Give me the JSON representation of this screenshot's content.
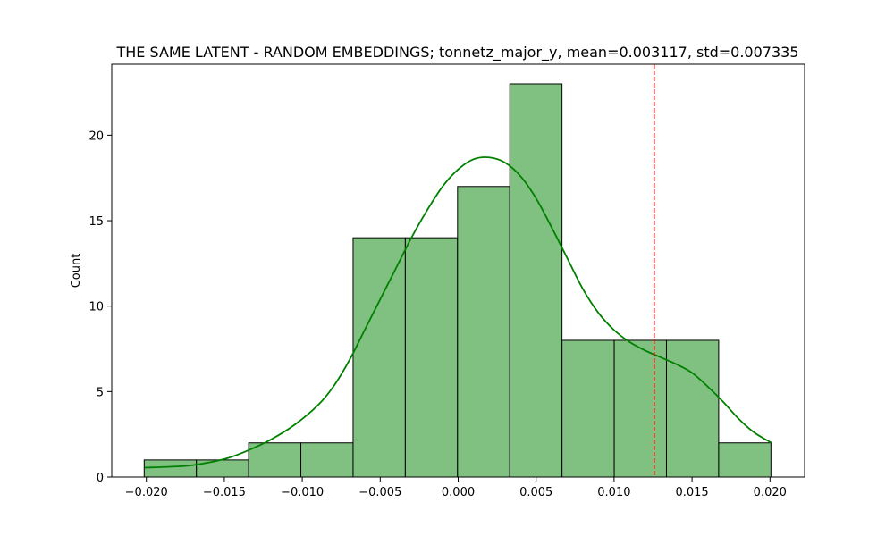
{
  "chart_data": {
    "type": "bar",
    "title": "THE SAME LATENT - RANDOM EMBEDDINGS; tonnetz_major_y, mean=0.003117, std=0.007335",
    "xlabel": "",
    "ylabel": "Count",
    "bin_edges": [
      -0.02014,
      -0.01679,
      -0.01344,
      -0.01009,
      -0.00674,
      -0.00339,
      -4e-05,
      0.00331,
      0.00666,
      0.01001,
      0.01336,
      0.01671,
      0.02006
    ],
    "values": [
      1,
      1,
      2,
      2,
      14,
      14,
      17,
      23,
      8,
      8,
      8,
      2
    ],
    "xlim": [
      -0.02222,
      0.02222
    ],
    "ylim": [
      0,
      24.15
    ],
    "x_ticks": [
      -0.02,
      -0.015,
      -0.01,
      -0.005,
      0.0,
      0.005,
      0.01,
      0.015,
      0.02
    ],
    "x_tick_labels": [
      "−0.020",
      "−0.015",
      "−0.010",
      "−0.005",
      "0.000",
      "0.005",
      "0.010",
      "0.015",
      "0.020"
    ],
    "y_ticks": [
      0,
      5,
      10,
      15,
      20
    ],
    "y_tick_labels": [
      "0",
      "5",
      "10",
      "15",
      "20"
    ],
    "kde": {
      "x": [
        -0.0201,
        -0.0185,
        -0.017,
        -0.015,
        -0.0135,
        -0.012,
        -0.0105,
        -0.009,
        -0.008,
        -0.007,
        -0.006,
        -0.005,
        -0.004,
        -0.003,
        -0.002,
        -0.001,
        0.0,
        0.001,
        0.002,
        0.003,
        0.004,
        0.005,
        0.006,
        0.007,
        0.008,
        0.009,
        0.01,
        0.011,
        0.012,
        0.013,
        0.014,
        0.015,
        0.016,
        0.017,
        0.018,
        0.019,
        0.0201
      ],
      "y": [
        0.55,
        0.6,
        0.7,
        1.05,
        1.55,
        2.2,
        3.05,
        4.2,
        5.3,
        6.8,
        8.6,
        10.4,
        12.2,
        14.0,
        15.6,
        17.0,
        18.0,
        18.6,
        18.7,
        18.4,
        17.6,
        16.3,
        14.6,
        12.8,
        11.0,
        9.6,
        8.6,
        7.9,
        7.4,
        7.0,
        6.6,
        6.1,
        5.3,
        4.4,
        3.4,
        2.6,
        2.0
      ]
    },
    "reference_line_x": 0.01258,
    "colors": {
      "bar_fill": "#80c080",
      "bar_edge": "#000000",
      "kde_line": "#008000",
      "reference_line": "#ff0000"
    },
    "grid": false,
    "legend": "none"
  }
}
